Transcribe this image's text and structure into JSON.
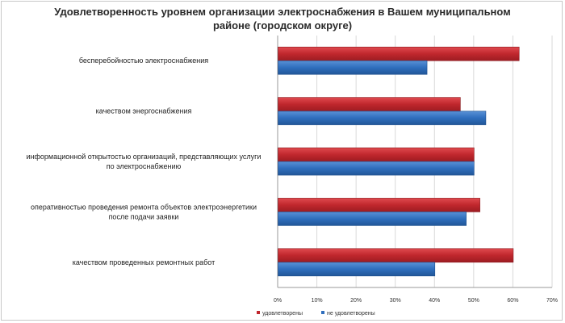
{
  "chart_data": {
    "type": "bar",
    "orientation": "horizontal",
    "title_lines": [
      "Удовлетворенность уровнем организации электроснабжения в Вашем муниципальном",
      "районе (городском округе)"
    ],
    "categories": [
      {
        "lines": [
          "бесперебойностью  электроснабжения"
        ]
      },
      {
        "lines": [
          "качеством энергоснабжения"
        ]
      },
      {
        "lines": [
          "информационной открытостью организаций, представляющих услуги",
          "по электроснабжению"
        ]
      },
      {
        "lines": [
          "оперативностью проведения ремонта объектов электроэнергетики",
          "после подачи заявки"
        ]
      },
      {
        "lines": [
          "качеством проведенных ремонтных работ"
        ]
      }
    ],
    "series": [
      {
        "name": "удовлетворены",
        "color": "#c0272d",
        "values": [
          61.5,
          46.5,
          50,
          51.5,
          60
        ]
      },
      {
        "name": "не удовлетворены",
        "color": "#2f6ebd",
        "values": [
          38,
          53,
          50,
          48,
          40
        ]
      }
    ],
    "xlim": [
      0,
      70
    ],
    "xticks": [
      "0%",
      "10%",
      "20%",
      "30%",
      "40%",
      "50%",
      "60%",
      "70%"
    ],
    "grid": true,
    "legend": "bottom"
  }
}
